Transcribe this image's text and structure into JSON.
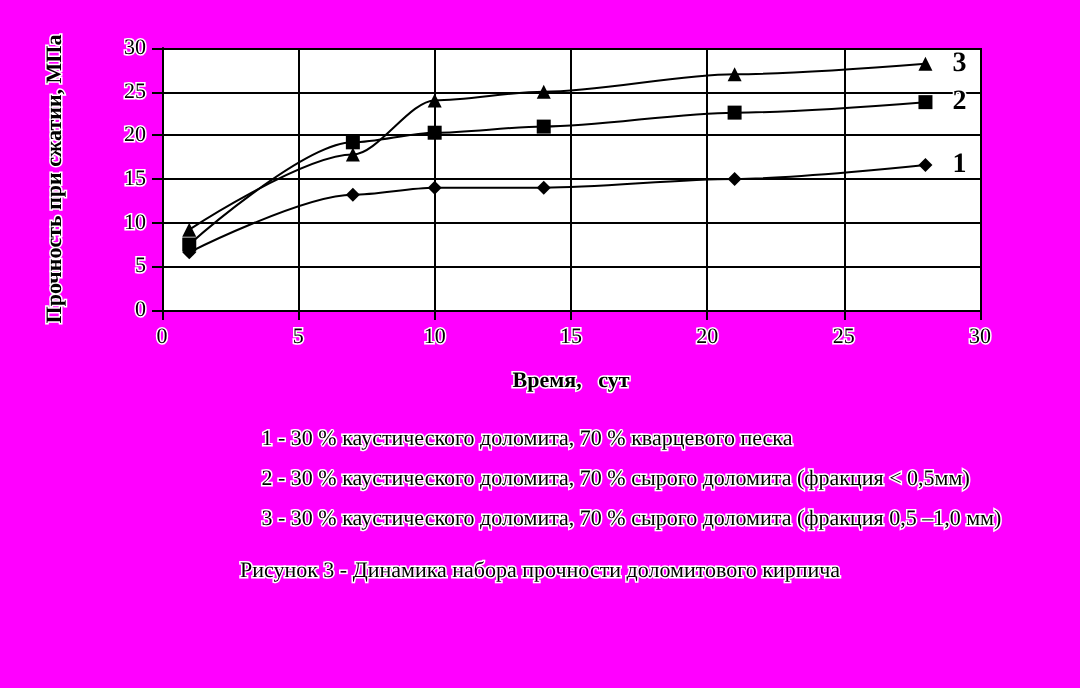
{
  "chart_data": {
    "type": "line",
    "xlabel": "Время,   сут",
    "ylabel": "Прочность при сжатии, МПа",
    "x": [
      1,
      7,
      10,
      14,
      21,
      28
    ],
    "series": [
      {
        "name": "1",
        "color": "#000000",
        "marker": "diamond",
        "values": [
          6.6,
          13.2,
          14,
          14,
          15,
          16.6
        ]
      },
      {
        "name": "2",
        "color": "#000000",
        "marker": "square",
        "values": [
          7.5,
          19.2,
          20.3,
          21,
          22.6,
          23.8
        ]
      },
      {
        "name": "3",
        "color": "#000000",
        "marker": "triangle",
        "values": [
          9.2,
          17.8,
          24,
          25,
          27,
          28.2
        ]
      }
    ],
    "xlim": [
      0,
      30
    ],
    "xticks": [
      0,
      5,
      10,
      15,
      20,
      25,
      30
    ],
    "ylim": [
      0,
      30
    ],
    "yticks": [
      0,
      5,
      10,
      15,
      20,
      25,
      30
    ],
    "grid": true,
    "legend": false,
    "line_style": "solid",
    "annotations": [
      "1 - 30 % каустического доломита, 70 % кварцевого песка",
      "2 - 30 % каустического доломита, 70 % сырого доломита (фракция < 0,5мм)",
      "3 - 30 % каустического доломита, 70 % сырого доломита (фракция 0,5 –1,0 мм)",
      "Рисунок 3 - Динамика набора прочности доломитового кирпича"
    ]
  }
}
